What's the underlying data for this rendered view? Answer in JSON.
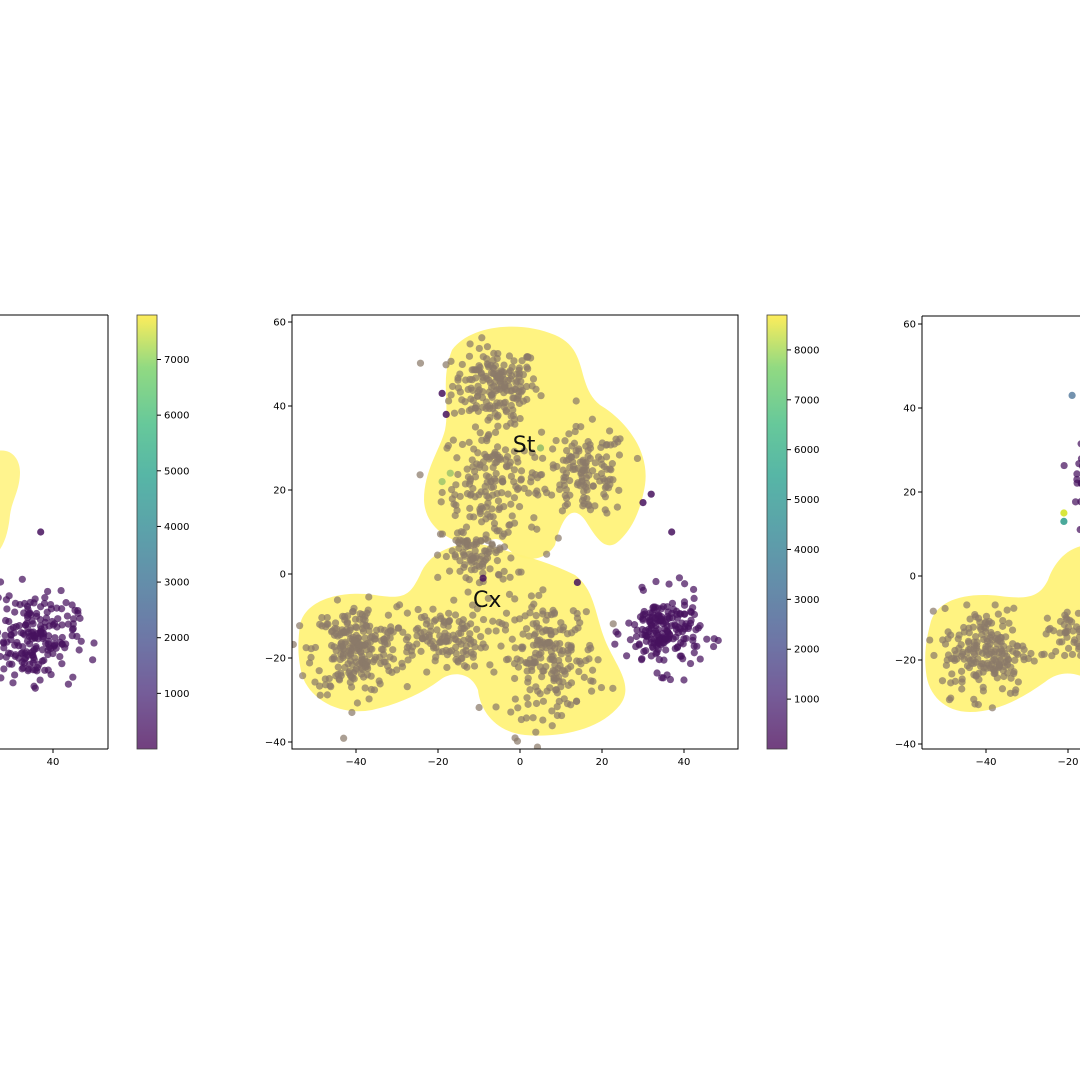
{
  "chart_data": [
    {
      "type": "scatter",
      "panel": "left (cropped)",
      "xticks": [
        40
      ],
      "yticks": [],
      "colorbar": {
        "ticks": [
          1000,
          2000,
          3000,
          4000,
          5000,
          6000,
          7000
        ],
        "range": [
          0,
          7800
        ],
        "colormap": "viridis"
      },
      "clusters": [
        {
          "name": "main (cropped)",
          "color": "#7d6a78"
        },
        {
          "name": "right",
          "center": [
            35,
            -15
          ],
          "color": "#46125e"
        }
      ],
      "outliers": [
        {
          "x": 37,
          "y": 10,
          "color": "#46125e"
        }
      ]
    },
    {
      "type": "scatter",
      "panel": "center",
      "xlim": [
        -55,
        54
      ],
      "ylim": [
        -41,
        61
      ],
      "xticks": [
        -40,
        -20,
        0,
        20,
        40
      ],
      "yticks": [
        -40,
        -20,
        0,
        20,
        40,
        60
      ],
      "colorbar": {
        "ticks": [
          1000,
          2000,
          3000,
          4000,
          5000,
          6000,
          7000,
          8000
        ],
        "range": [
          0,
          8700
        ],
        "colormap": "viridis"
      },
      "regions": [
        {
          "label": "St",
          "label_at": [
            1,
            31
          ],
          "color": "#fff27a"
        },
        {
          "label": "Cx",
          "label_at": [
            -8,
            -6
          ],
          "color": "#fff27a"
        }
      ],
      "clusters": [
        {
          "name": "St-top",
          "center": [
            -6,
            45
          ],
          "spread": [
            7,
            6
          ],
          "n": 180,
          "color": "#8a7a6a"
        },
        {
          "name": "St-mid",
          "center": [
            -7,
            22
          ],
          "spread": [
            8,
            9
          ],
          "n": 170,
          "color": "#8a7a6a"
        },
        {
          "name": "St-right",
          "center": [
            16,
            24
          ],
          "spread": [
            7,
            7
          ],
          "n": 140,
          "color": "#8a7a6a"
        },
        {
          "name": "Cx-left",
          "center": [
            -40,
            -18
          ],
          "spread": [
            7,
            7
          ],
          "n": 230,
          "color": "#8a7a6a"
        },
        {
          "name": "Cx-mid",
          "center": [
            -20,
            -15
          ],
          "spread": [
            8,
            5
          ],
          "n": 130,
          "color": "#8a7a6a"
        },
        {
          "name": "Cx-top",
          "center": [
            -10,
            4
          ],
          "spread": [
            6,
            5
          ],
          "n": 90,
          "color": "#8a7a6a"
        },
        {
          "name": "Cx-bottom",
          "center": [
            7,
            -20
          ],
          "spread": [
            8,
            9
          ],
          "n": 210,
          "color": "#8a7a6a"
        },
        {
          "name": "outer-right",
          "center": [
            35,
            -14
          ],
          "spread": [
            6,
            6
          ],
          "n": 190,
          "color": "#46125e"
        }
      ],
      "outliers": [
        {
          "x": -19,
          "y": 43,
          "color": "#46125e"
        },
        {
          "x": -18,
          "y": 38,
          "color": "#46125e"
        },
        {
          "x": 32,
          "y": 19,
          "color": "#46125e"
        },
        {
          "x": 30,
          "y": 17,
          "color": "#46125e"
        },
        {
          "x": 37,
          "y": 10,
          "color": "#46125e"
        },
        {
          "x": -9,
          "y": -1,
          "color": "#46125e"
        },
        {
          "x": 14,
          "y": -2,
          "color": "#46125e"
        },
        {
          "x": -17,
          "y": 24,
          "color": "#9fc36c"
        },
        {
          "x": -19,
          "y": 22,
          "color": "#9fc36c"
        },
        {
          "x": 5,
          "y": 30,
          "color": "#8fb86a"
        }
      ]
    },
    {
      "type": "scatter",
      "panel": "right (cropped)",
      "xticks": [
        -40,
        -20
      ],
      "yticks": [
        -40,
        -20,
        0,
        20,
        40,
        60
      ],
      "clusters": [
        {
          "name": "Cx-left",
          "center": [
            -40,
            -17
          ],
          "color": "#8a7a6a"
        },
        {
          "name": "purple",
          "center": [
            -17,
            24
          ],
          "color": "#46125e"
        }
      ],
      "outliers": [
        {
          "x": -19,
          "y": 43,
          "color": "#5a7fa0"
        },
        {
          "x": -21,
          "y": 15,
          "color": "#d2e21b"
        },
        {
          "x": -21,
          "y": 13,
          "color": "#2a9a8a"
        }
      ]
    }
  ]
}
